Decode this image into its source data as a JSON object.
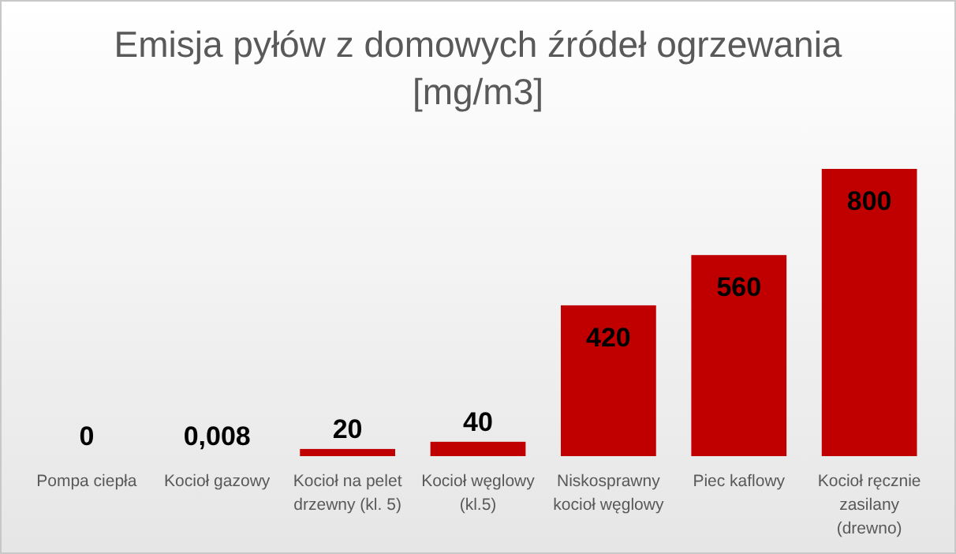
{
  "chart_data": {
    "type": "bar",
    "title": "Emisja pyłów z domowych źródeł ogrzewania [mg/m3]",
    "categories": [
      "Pompa ciepła",
      "Kocioł gazowy",
      "Kocioł na pelet drzewny (kl. 5)",
      "Kocioł węglowy (kl.5)",
      "Niskosprawny kocioł węglowy",
      "Piec kaflowy",
      "Kocioł ręcznie zasilany (drewno)"
    ],
    "values": [
      0,
      0.008,
      20,
      40,
      420,
      560,
      800
    ],
    "value_labels": [
      "0",
      "0,008",
      "20",
      "40",
      "420",
      "560",
      "800"
    ],
    "color": "#c00000"
  }
}
